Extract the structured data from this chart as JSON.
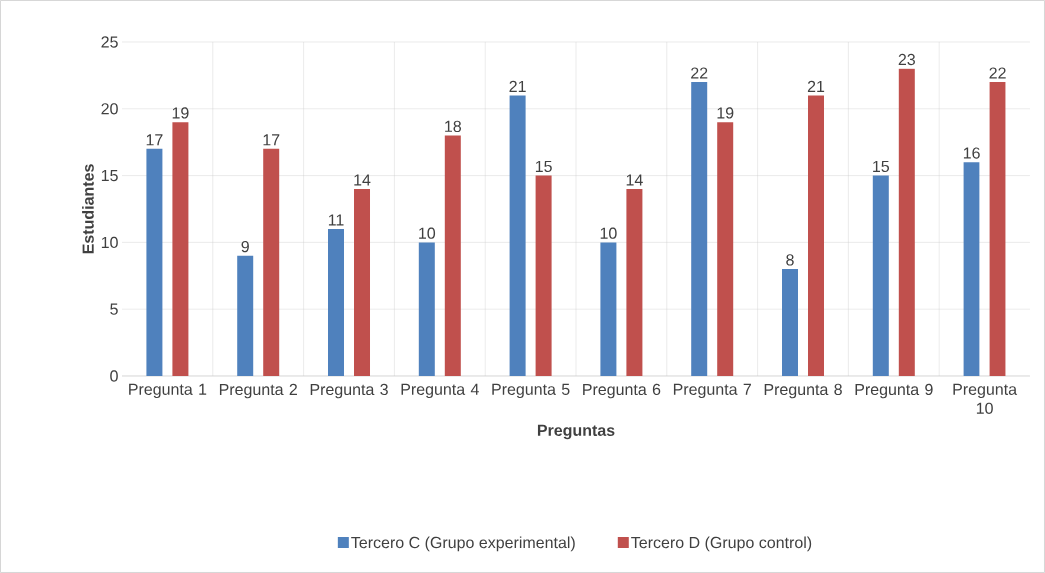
{
  "chart_data": {
    "type": "bar",
    "xlabel": "Preguntas",
    "ylabel": "Estudiantes",
    "categories": [
      "Pregunta 1",
      "Pregunta 2",
      "Pregunta 3",
      "Pregunta 4",
      "Pregunta 5",
      "Pregunta 6",
      "Pregunta 7",
      "Pregunta 8",
      "Pregunta 9",
      "Pregunta 10"
    ],
    "series": [
      {
        "name": "Tercero C (Grupo experimental)",
        "color": "#4f81bd",
        "values": [
          17,
          9,
          11,
          10,
          21,
          10,
          22,
          8,
          15,
          16
        ]
      },
      {
        "name": "Tercero D (Grupo control)",
        "color": "#c0504d",
        "values": [
          19,
          17,
          14,
          18,
          15,
          14,
          19,
          21,
          23,
          22
        ]
      }
    ],
    "ylim": [
      0,
      25
    ],
    "yticks": [
      0,
      5,
      10,
      15,
      20,
      25
    ],
    "grid": true,
    "legend": "bottom",
    "data_labels": true
  }
}
